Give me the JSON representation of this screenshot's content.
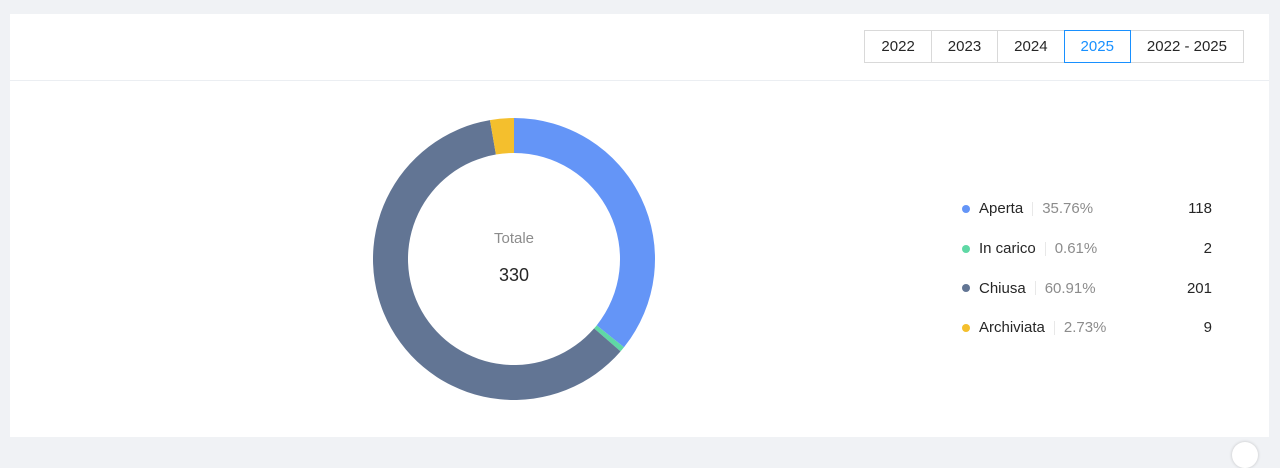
{
  "filters": {
    "years": [
      "2022",
      "2023",
      "2024",
      "2025",
      "2022 - 2025"
    ],
    "active_index": 3
  },
  "chart_data": {
    "type": "pie",
    "variant": "donut",
    "center_label": "Totale",
    "total": 330,
    "legend_placement": "right",
    "slices": [
      {
        "name": "Aperta",
        "value": 118,
        "percent": "35.76%",
        "color": "#6495f7"
      },
      {
        "name": "In carico",
        "value": 2,
        "percent": "0.61%",
        "color": "#5fd8a5"
      },
      {
        "name": "Chiusa",
        "value": 201,
        "percent": "60.91%",
        "color": "#627594"
      },
      {
        "name": "Archiviata",
        "value": 9,
        "percent": "2.73%",
        "color": "#f4bf2d"
      }
    ]
  }
}
